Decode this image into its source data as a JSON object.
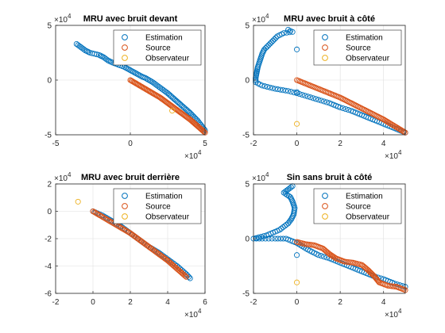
{
  "colors": {
    "estimation": "#0072BD",
    "source": "#D95319",
    "observateur": "#EDB120",
    "grid": "#dfdfdf",
    "axis": "#262626"
  },
  "chart_data": [
    {
      "type": "scatter",
      "title": "MRU avec bruit devant",
      "xlim": [
        -50000,
        50000
      ],
      "ylim": [
        -50000,
        50000
      ],
      "x_ticks": [
        "-5",
        "0",
        "5"
      ],
      "y_ticks": [
        "5",
        "0",
        "-5"
      ],
      "x_exponent": "×10^4",
      "y_exponent": "×10^4",
      "grid": true,
      "legend_position": "top-right",
      "legend": [
        "Estimation",
        "Source",
        "Observateur"
      ],
      "series": [
        {
          "name": "Estimation",
          "points": [
            [
              -36000,
              33000
            ],
            [
              -33000,
              30000
            ],
            [
              -30000,
              27000
            ],
            [
              -27000,
              25000
            ],
            [
              -24000,
              24000
            ],
            [
              -21000,
              23000
            ],
            [
              -18000,
              21000
            ],
            [
              -15000,
              18000
            ],
            [
              -12000,
              16000
            ],
            [
              -8000,
              14000
            ],
            [
              -4000,
              12000
            ],
            [
              0,
              9000
            ],
            [
              4000,
              6000
            ],
            [
              8000,
              3000
            ],
            [
              10000,
              2000
            ],
            [
              15000,
              -2000
            ],
            [
              20000,
              -7000
            ],
            [
              25000,
              -12000
            ],
            [
              30000,
              -18000
            ],
            [
              35000,
              -24000
            ],
            [
              40000,
              -30000
            ],
            [
              45000,
              -37000
            ],
            [
              50000,
              -46000
            ]
          ]
        },
        {
          "name": "Source",
          "points": [
            [
              0,
              0
            ],
            [
              5000,
              -4000
            ],
            [
              10000,
              -8000
            ],
            [
              15000,
              -12000
            ],
            [
              20000,
              -16000
            ],
            [
              25000,
              -21000
            ],
            [
              30000,
              -26000
            ],
            [
              35000,
              -31000
            ],
            [
              40000,
              -36000
            ],
            [
              45000,
              -42000
            ],
            [
              50000,
              -48000
            ]
          ]
        },
        {
          "name": "Observateur",
          "points": [
            [
              28000,
              -28000
            ]
          ]
        }
      ]
    },
    {
      "type": "scatter",
      "title": "MRU avec bruit à côté",
      "xlim": [
        -20000,
        50000
      ],
      "ylim": [
        -50000,
        50000
      ],
      "x_ticks": [
        "-2",
        "0",
        "2",
        "4"
      ],
      "y_ticks": [
        "5",
        "0",
        "-5"
      ],
      "x_exponent": "×10^4",
      "y_exponent": "×10^4",
      "grid": true,
      "legend_position": "top-right",
      "legend": [
        "Estimation",
        "Source",
        "Observateur"
      ],
      "series": [
        {
          "name": "Estimation",
          "points": [
            [
              -4000,
              46000
            ],
            [
              -2000,
              44000
            ],
            [
              -6000,
              43000
            ],
            [
              -9000,
              40000
            ],
            [
              -11000,
              36000
            ],
            [
              -13000,
              32000
            ],
            [
              -15000,
              28000
            ],
            [
              -16000,
              24000
            ],
            [
              -17000,
              18000
            ],
            [
              -18000,
              12000
            ],
            [
              -18500,
              7000
            ],
            [
              -19000,
              2000
            ],
            [
              -19000,
              -2000
            ],
            [
              -16000,
              -5000
            ],
            [
              -10000,
              -8000
            ],
            [
              -4000,
              -10000
            ],
            [
              0,
              -12000
            ],
            [
              5000,
              -15000
            ],
            [
              10000,
              -18000
            ],
            [
              15000,
              -21000
            ],
            [
              20000,
              -25000
            ],
            [
              25000,
              -28000
            ],
            [
              30000,
              -32000
            ],
            [
              35000,
              -36000
            ],
            [
              40000,
              -40000
            ],
            [
              45000,
              -44000
            ],
            [
              50000,
              -48000
            ],
            [
              0,
              28000
            ],
            [
              0,
              -11000
            ]
          ]
        },
        {
          "name": "Source",
          "points": [
            [
              0,
              0
            ],
            [
              5000,
              -4000
            ],
            [
              10000,
              -8000
            ],
            [
              15000,
              -12000
            ],
            [
              20000,
              -16000
            ],
            [
              25000,
              -21000
            ],
            [
              30000,
              -26000
            ],
            [
              35000,
              -31000
            ],
            [
              40000,
              -36000
            ],
            [
              45000,
              -42000
            ],
            [
              50000,
              -48000
            ]
          ]
        },
        {
          "name": "Observateur",
          "points": [
            [
              0,
              -40000
            ]
          ]
        }
      ]
    },
    {
      "type": "scatter",
      "title": "MRU avec bruit derrière",
      "xlim": [
        -20000,
        60000
      ],
      "ylim": [
        -60000,
        20000
      ],
      "x_ticks": [
        "-2",
        "0",
        "2",
        "4",
        "6"
      ],
      "y_ticks": [
        "2",
        "0",
        "-2",
        "-4",
        "-6"
      ],
      "x_exponent": "×10^4",
      "y_exponent": "×10^4",
      "grid": true,
      "legend_position": "top-right",
      "legend": [
        "Estimation",
        "Source",
        "Observateur"
      ],
      "series": [
        {
          "name": "Estimation",
          "points": [
            [
              0,
              0
            ],
            [
              5000,
              -3000
            ],
            [
              10000,
              -7000
            ],
            [
              15000,
              -11000
            ],
            [
              20000,
              -16000
            ],
            [
              25000,
              -21000
            ],
            [
              30000,
              -26000
            ],
            [
              35000,
              -30000
            ],
            [
              40000,
              -35000
            ],
            [
              45000,
              -40000
            ],
            [
              50000,
              -46000
            ],
            [
              52000,
              -49000
            ]
          ]
        },
        {
          "name": "Source",
          "points": [
            [
              0,
              0
            ],
            [
              5000,
              -4000
            ],
            [
              10000,
              -8000
            ],
            [
              15000,
              -12000
            ],
            [
              20000,
              -16000
            ],
            [
              25000,
              -21000
            ],
            [
              30000,
              -26000
            ],
            [
              35000,
              -31000
            ],
            [
              40000,
              -36000
            ],
            [
              45000,
              -42000
            ],
            [
              50000,
              -48000
            ]
          ]
        },
        {
          "name": "Observateur",
          "points": [
            [
              -8000,
              7000
            ]
          ]
        }
      ]
    },
    {
      "type": "scatter",
      "title": "Sin sans bruit à côté",
      "xlim": [
        -20000,
        50000
      ],
      "ylim": [
        -50000,
        50000
      ],
      "x_ticks": [
        "-2",
        "0",
        "2",
        "4"
      ],
      "y_ticks": [
        "5",
        "0",
        "-5"
      ],
      "x_exponent": "×10^4",
      "y_exponent": "×10^4",
      "grid": true,
      "legend_position": "top-right",
      "legend": [
        "Estimation",
        "Source",
        "Observateur"
      ],
      "series": [
        {
          "name": "Estimation",
          "points": [
            [
              -2000,
              48000
            ],
            [
              -4000,
              45000
            ],
            [
              -6000,
              42000
            ],
            [
              -3000,
              38000
            ],
            [
              -2000,
              34000
            ],
            [
              -1000,
              28000
            ],
            [
              -1500,
              22000
            ],
            [
              -2500,
              18000
            ],
            [
              -4000,
              14000
            ],
            [
              -8000,
              8000
            ],
            [
              -14000,
              3000
            ],
            [
              -20000,
              0
            ],
            [
              -16000,
              0
            ],
            [
              -10000,
              0
            ],
            [
              -5000,
              0
            ],
            [
              0,
              -4000
            ],
            [
              5000,
              -10000
            ],
            [
              10000,
              -15000
            ],
            [
              15000,
              -18000
            ],
            [
              20000,
              -22000
            ],
            [
              25000,
              -26000
            ],
            [
              30000,
              -30000
            ],
            [
              35000,
              -34000
            ],
            [
              40000,
              -37000
            ],
            [
              45000,
              -41000
            ],
            [
              50000,
              -44000
            ],
            [
              0,
              -15000
            ]
          ]
        },
        {
          "name": "Source",
          "points": [
            [
              0,
              -3000
            ],
            [
              4000,
              -5000
            ],
            [
              8000,
              -6000
            ],
            [
              12000,
              -9000
            ],
            [
              15000,
              -14000
            ],
            [
              18000,
              -18000
            ],
            [
              22000,
              -21000
            ],
            [
              26000,
              -22000
            ],
            [
              30000,
              -24000
            ],
            [
              33000,
              -29000
            ],
            [
              36000,
              -35000
            ],
            [
              38000,
              -40000
            ],
            [
              42000,
              -43000
            ],
            [
              46000,
              -44000
            ],
            [
              50000,
              -47000
            ]
          ]
        },
        {
          "name": "Observateur",
          "points": [
            [
              0,
              -40000
            ]
          ]
        }
      ]
    }
  ]
}
